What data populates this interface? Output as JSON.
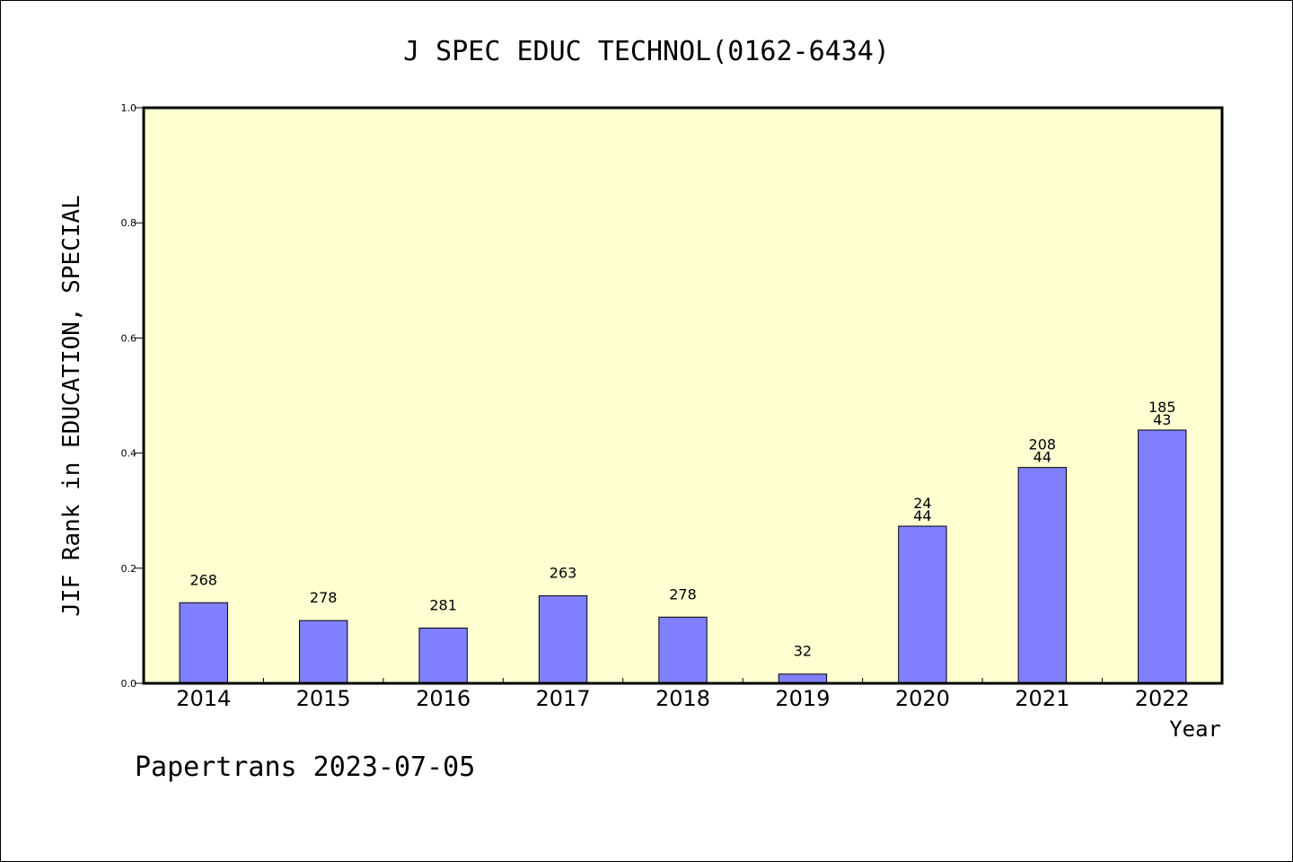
{
  "chart_data": {
    "type": "bar",
    "title": "J SPEC EDUC TECHNOL(0162-6434)",
    "xlabel": "Year",
    "ylabel": "JIF Rank in EDUCATION, SPECIAL",
    "footer": "Papertrans 2023-07-05",
    "ylim": [
      0,
      1.0
    ],
    "yticks": [
      "0.0",
      "0.2",
      "0.4",
      "0.6",
      "0.8",
      "1.0"
    ],
    "categories": [
      "2014",
      "2015",
      "2016",
      "2017",
      "2018",
      "2019",
      "2020",
      "2021",
      "2022"
    ],
    "values": [
      0.14,
      0.109,
      0.096,
      0.152,
      0.115,
      0.016,
      0.273,
      0.375,
      0.44
    ],
    "labels": [
      [
        "268"
      ],
      [
        "278"
      ],
      [
        "281"
      ],
      [
        "263"
      ],
      [
        "278"
      ],
      [
        "32"
      ],
      [
        "24",
        "44"
      ],
      [
        "208",
        "44"
      ],
      [
        "185",
        "43"
      ]
    ],
    "grid": false,
    "colors": {
      "plot_background": "#ffffd2",
      "bar_fill": "#8080ff",
      "bar_stroke": "#000000",
      "axis": "#000000"
    }
  }
}
